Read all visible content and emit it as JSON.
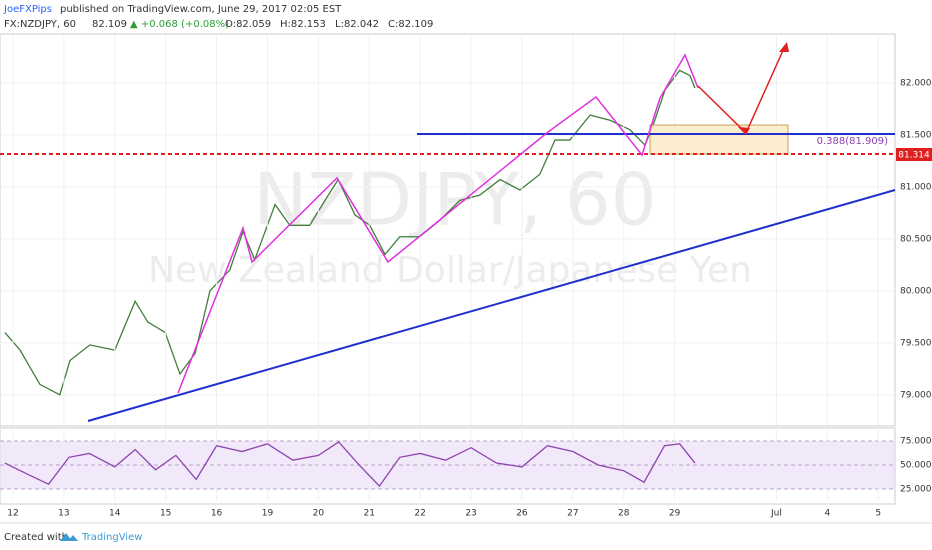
{
  "header": {
    "author": "JoeFXPips",
    "published": "published on TradingView.com, June 29, 2017 02:05 EST",
    "symbol": "FX:NZDJPY, 60",
    "last": "82.109",
    "change": "▲ +0.068 (+0.08%)",
    "open": "O:82.059",
    "high": "H:82.153",
    "low": "L:82.042",
    "close": "C:82.109"
  },
  "watermark": {
    "ticker": "NZDJPY, 60",
    "name": "New Zealand Dollar/Japanese Yen"
  },
  "annotations": {
    "fib_label": "0.388(81.909)",
    "level_label": "81.314"
  },
  "footer": {
    "created_with": "Created with",
    "brand": "TradingView"
  },
  "chart_data": [
    {
      "type": "line",
      "series": [
        {
          "name": "NZDJPY",
          "color": "#3f7f3a",
          "x": [
            -0.16,
            0.14,
            0.53,
            0.92,
            1.12,
            1.51,
            2.0,
            2.4,
            2.65,
            2.99,
            3.28,
            3.58,
            3.87,
            4.26,
            4.52,
            4.75,
            5.15,
            5.44,
            5.83,
            6.13,
            6.39,
            6.72,
            7.01,
            7.31,
            7.6,
            7.99,
            8.39,
            8.78,
            9.17,
            9.57,
            9.96,
            10.35,
            10.65,
            10.94,
            11.34,
            11.73,
            12.12,
            12.42,
            12.61,
            12.81,
            13.1,
            13.3,
            13.4
          ],
          "values": [
            79.6,
            79.43,
            79.1,
            79.0,
            79.33,
            79.48,
            79.43,
            79.9,
            79.7,
            79.6,
            79.2,
            79.4,
            80.0,
            80.2,
            80.57,
            80.3,
            80.83,
            80.63,
            80.63,
            80.87,
            81.07,
            80.73,
            80.63,
            80.35,
            80.52,
            80.52,
            80.68,
            80.87,
            80.92,
            81.07,
            80.97,
            81.12,
            81.45,
            81.45,
            81.69,
            81.64,
            81.55,
            81.4,
            81.64,
            81.93,
            82.12,
            82.07,
            81.95
          ]
        }
      ],
      "xlim": [
        -0.255,
        17.33
      ],
      "ylim": [
        78.71,
        82.46
      ],
      "yticks": [
        {
          "value": 82,
          "label": "82.000"
        },
        {
          "value": 81.5,
          "label": "81.500"
        },
        {
          "value": 81,
          "label": "81.000"
        },
        {
          "value": 80.5,
          "label": "80.500"
        },
        {
          "value": 80,
          "label": "80.000"
        },
        {
          "value": 79.5,
          "label": "79.500"
        },
        {
          "value": 79,
          "label": "79.000"
        }
      ],
      "grid": true
    },
    {
      "type": "line",
      "series": [
        {
          "name": "RSI",
          "color": "#8e44ad",
          "x": [
            -0.16,
            0.3,
            0.7,
            1.1,
            1.5,
            2.0,
            2.4,
            2.8,
            3.2,
            3.6,
            4.0,
            4.5,
            5.0,
            5.5,
            6.0,
            6.4,
            6.8,
            7.2,
            7.6,
            8.0,
            8.5,
            9.0,
            9.5,
            10.0,
            10.5,
            11.0,
            11.5,
            12.0,
            12.4,
            12.8,
            13.1,
            13.4
          ],
          "values": [
            52,
            40,
            30,
            58,
            62,
            48,
            66,
            45,
            60,
            35,
            70,
            64,
            72,
            55,
            60,
            74,
            50,
            28,
            58,
            62,
            55,
            68,
            52,
            48,
            70,
            64,
            50,
            44,
            32,
            70,
            72,
            52
          ]
        }
      ],
      "xlim": [
        -0.255,
        17.33
      ],
      "ylim": [
        13.5,
        88.5
      ],
      "yticks": [
        {
          "value": 75,
          "label": "75.0000"
        },
        {
          "value": 50,
          "label": "50.0000"
        },
        {
          "value": 25,
          "label": "25.0000"
        }
      ],
      "xticks": [
        {
          "value": 0,
          "label": "12"
        },
        {
          "value": 1,
          "label": "13"
        },
        {
          "value": 2,
          "label": "14"
        },
        {
          "value": 3,
          "label": "15"
        },
        {
          "value": 4,
          "label": "16"
        },
        {
          "value": 5,
          "label": "19"
        },
        {
          "value": 6,
          "label": "20"
        },
        {
          "value": 7,
          "label": "21"
        },
        {
          "value": 8,
          "label": "22"
        },
        {
          "value": 9,
          "label": "23"
        },
        {
          "value": 10,
          "label": "26"
        },
        {
          "value": 11,
          "label": "27"
        },
        {
          "value": 12,
          "label": "28"
        },
        {
          "value": 13,
          "label": "29"
        },
        {
          "value": 15,
          "label": "Jul"
        },
        {
          "value": 16,
          "label": "4"
        },
        {
          "value": 17,
          "label": "5"
        }
      ],
      "grid": true
    }
  ]
}
